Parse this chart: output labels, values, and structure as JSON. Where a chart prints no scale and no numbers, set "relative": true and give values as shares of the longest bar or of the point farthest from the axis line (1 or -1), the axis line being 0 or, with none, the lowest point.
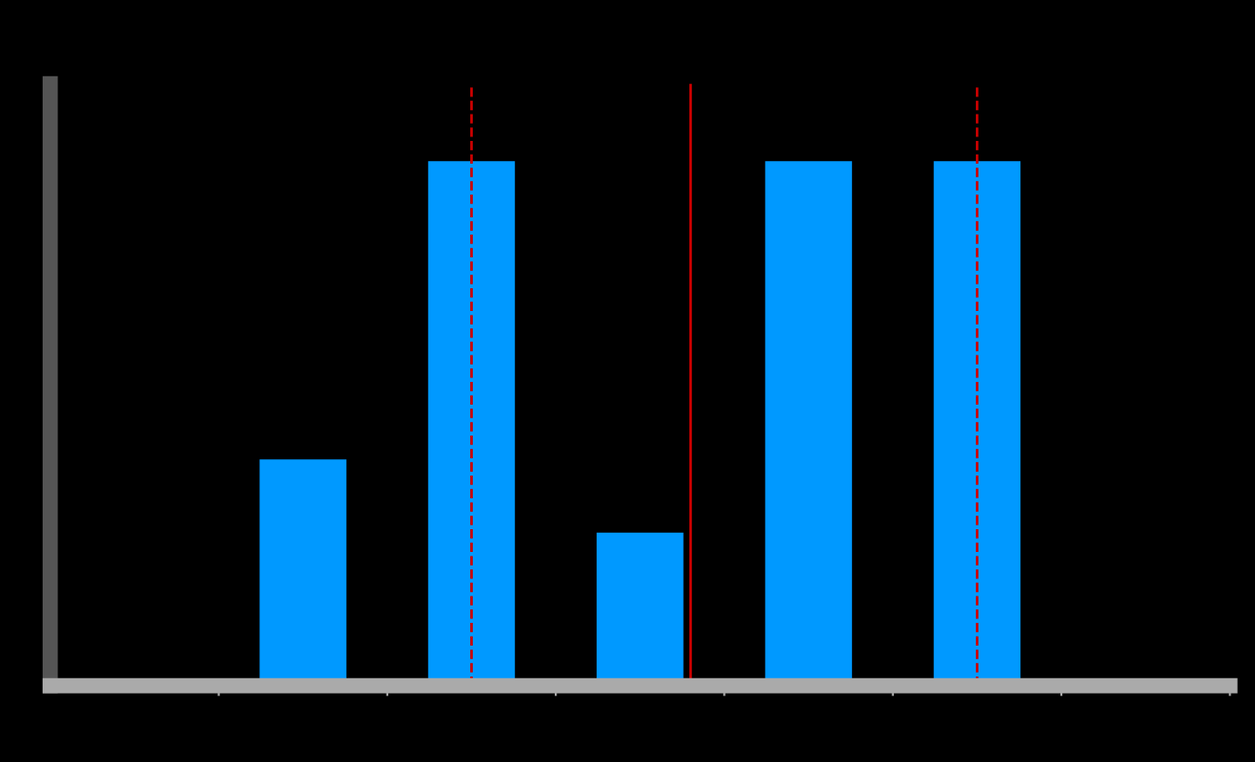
{
  "chart_data": {
    "type": "bar",
    "relative": true,
    "categories": [
      null,
      null,
      null,
      null,
      null
    ],
    "values": [
      0.43,
      1,
      0.29,
      1,
      1
    ],
    "color": "#0099ff",
    "grid": false,
    "legend": false
  }
}
